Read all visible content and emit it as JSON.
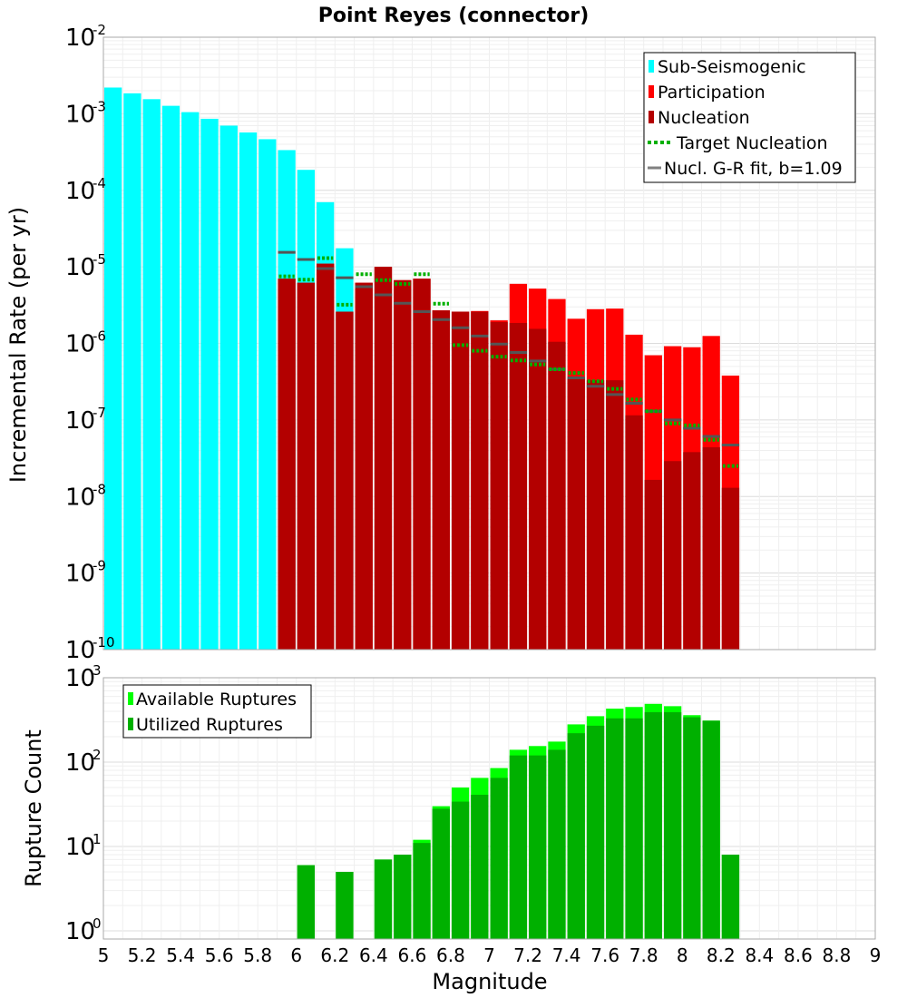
{
  "chart_data": {
    "title": "Point Reyes (connector)",
    "xlabel": "Magnitude",
    "xlim": [
      5,
      9
    ],
    "x_ticks": [
      "5",
      "5.2",
      "5.4",
      "5.6",
      "5.8",
      "6",
      "6.2",
      "6.4",
      "6.6",
      "6.8",
      "7",
      "7.2",
      "7.4",
      "7.6",
      "7.8",
      "8",
      "8.2",
      "8.4",
      "8.6",
      "8.8",
      "9"
    ],
    "bin_width": 0.1,
    "panels": [
      {
        "type": "bar",
        "scale": "log",
        "ylabel": "Incremental Rate (per yr)",
        "ylim_exp": [
          -10,
          -2
        ],
        "y_ticks": [
          {
            "base": "10",
            "exp": "-2"
          },
          {
            "base": "10",
            "exp": "-3"
          },
          {
            "base": "10",
            "exp": "-4"
          },
          {
            "base": "10",
            "exp": "-5"
          },
          {
            "base": "10",
            "exp": "-6"
          },
          {
            "base": "10",
            "exp": "-7"
          },
          {
            "base": "10",
            "exp": "-8"
          },
          {
            "base": "10",
            "exp": "-9"
          },
          {
            "base": "10",
            "exp": "-10"
          }
        ],
        "legend": [
          "Sub-Seismogenic",
          "Participation",
          "Nucleation",
          "Target Nucleation",
          "Nucl. G-R fit, b=1.09"
        ],
        "legend_position": "top-right",
        "series": [
          {
            "name": "Sub-Seismogenic",
            "color": "#00ffff",
            "x": [
              5.05,
              5.15,
              5.25,
              5.35,
              5.45,
              5.55,
              5.65,
              5.75,
              5.85,
              5.95,
              6.05,
              6.15,
              6.25
            ],
            "values": [
              0.0022,
              0.00185,
              0.00155,
              0.00127,
              0.00105,
              0.00086,
              0.0007,
              0.00057,
              0.000465,
              0.000335,
              0.000185,
              7e-05,
              1.75e-05
            ]
          },
          {
            "name": "Participation",
            "color": "#ff0000",
            "x": [
              5.95,
              6.05,
              6.15,
              6.25,
              6.35,
              6.45,
              6.55,
              6.65,
              6.75,
              6.85,
              6.95,
              7.05,
              7.15,
              7.25,
              7.35,
              7.45,
              7.55,
              7.65,
              7.75,
              7.85,
              7.95,
              8.05,
              8.15,
              8.25
            ],
            "values": [
              7e-06,
              6.2e-06,
              1.1e-05,
              2.6e-06,
              6.2e-06,
              1e-05,
              6.7e-06,
              7e-06,
              2.7e-06,
              2.6e-06,
              2.65e-06,
              2e-06,
              6e-06,
              5.2e-06,
              3.8e-06,
              2.1e-06,
              2.8e-06,
              2.85e-06,
              1.3e-06,
              7e-07,
              9.2e-07,
              8.9e-07,
              1.25e-06,
              3.8e-07
            ]
          },
          {
            "name": "Nucleation",
            "color": "#b30000",
            "x": [
              5.95,
              6.05,
              6.15,
              6.25,
              6.35,
              6.45,
              6.55,
              6.65,
              6.75,
              6.85,
              6.95,
              7.05,
              7.15,
              7.25,
              7.35,
              7.45,
              7.55,
              7.65,
              7.75,
              7.85,
              7.95,
              8.05,
              8.15,
              8.25
            ],
            "values": [
              7e-06,
              6.2e-06,
              1.1e-05,
              2.6e-06,
              6.2e-06,
              1e-05,
              6.7e-06,
              7e-06,
              2.7e-06,
              2.6e-06,
              2.6e-06,
              1.9e-06,
              1.85e-06,
              1.55e-06,
              1.05e-06,
              3.5e-07,
              3.3e-07,
              3.3e-07,
              1.15e-07,
              1.65e-08,
              2.9e-08,
              3.8e-08,
              4.4e-08,
              1.3e-08
            ]
          },
          {
            "name": "Target Nucleation",
            "color": "#00b000",
            "style": "dotted",
            "x": [
              5.95,
              6.05,
              6.15,
              6.25,
              6.35,
              6.45,
              6.55,
              6.65,
              6.75,
              6.85,
              6.95,
              7.05,
              7.15,
              7.25,
              7.35,
              7.45,
              7.55,
              7.65,
              7.75,
              7.85,
              7.95,
              8.05,
              8.15,
              8.25
            ],
            "values": [
              7.5e-06,
              6.8e-06,
              1.3e-05,
              3.2e-06,
              8e-06,
              6.7e-06,
              6e-06,
              8e-06,
              3.3e-06,
              9.5e-07,
              8e-07,
              6.7e-07,
              6e-07,
              5.3e-07,
              4.6e-07,
              4.1e-07,
              3.2e-07,
              2.55e-07,
              1.85e-07,
              1.3e-07,
              9e-08,
              8.5e-08,
              5.5e-08,
              2.5e-08
            ]
          },
          {
            "name": "Nucl. G-R fit, b=1.09",
            "color": "#555555",
            "x": [
              5.95,
              6.05,
              6.15,
              6.25,
              6.35,
              6.45,
              6.55,
              6.65,
              6.75,
              6.85,
              6.95,
              7.05,
              7.15,
              7.25,
              7.35,
              7.45,
              7.55,
              7.65,
              7.75,
              7.85,
              7.95,
              8.05,
              8.15,
              8.25
            ],
            "values": [
              1.55e-05,
              1.25e-05,
              9.5e-06,
              7.2e-06,
              5.5e-06,
              4.3e-06,
              3.35e-06,
              2.6e-06,
              2.05e-06,
              1.6e-06,
              1.25e-06,
              9.8e-07,
              7.6e-07,
              5.9e-07,
              4.6e-07,
              3.55e-07,
              2.75e-07,
              2.15e-07,
              1.65e-07,
              1.3e-07,
              1e-07,
              7.8e-08,
              6.1e-08,
              4.7e-08
            ]
          }
        ]
      },
      {
        "type": "bar",
        "scale": "log",
        "ylabel": "Rupture Count",
        "ylim": [
          0.8,
          1000
        ],
        "y_ticks": [
          {
            "base": "10",
            "exp": "3"
          },
          {
            "base": "10",
            "exp": "2"
          },
          {
            "base": "10",
            "exp": "1"
          },
          {
            "base": "10",
            "exp": "0"
          }
        ],
        "legend": [
          "Available Ruptures",
          "Utilized Ruptures"
        ],
        "legend_position": "top-left",
        "series": [
          {
            "name": "Available Ruptures",
            "color": "#00ff00",
            "x": [
              6.05,
              6.25,
              6.45,
              6.55,
              6.65,
              6.75,
              6.85,
              6.95,
              7.05,
              7.15,
              7.25,
              7.35,
              7.45,
              7.55,
              7.65,
              7.75,
              7.85,
              7.95,
              8.05,
              8.15,
              8.25
            ],
            "values": [
              6,
              5,
              7,
              8,
              12,
              30,
              50,
              65,
              85,
              140,
              155,
              175,
              280,
              350,
              430,
              450,
              490,
              460,
              360,
              310,
              8
            ]
          },
          {
            "name": "Utilized Ruptures",
            "color": "#00b000",
            "x": [
              6.05,
              6.25,
              6.45,
              6.55,
              6.65,
              6.75,
              6.85,
              6.95,
              7.05,
              7.15,
              7.25,
              7.35,
              7.45,
              7.55,
              7.65,
              7.75,
              7.85,
              7.95,
              8.05,
              8.15,
              8.25
            ],
            "values": [
              6,
              5,
              7,
              8,
              11,
              28,
              34,
              41,
              65,
              120,
              120,
              140,
              220,
              270,
              330,
              330,
              390,
              390,
              340,
              310,
              8
            ]
          }
        ]
      }
    ]
  }
}
